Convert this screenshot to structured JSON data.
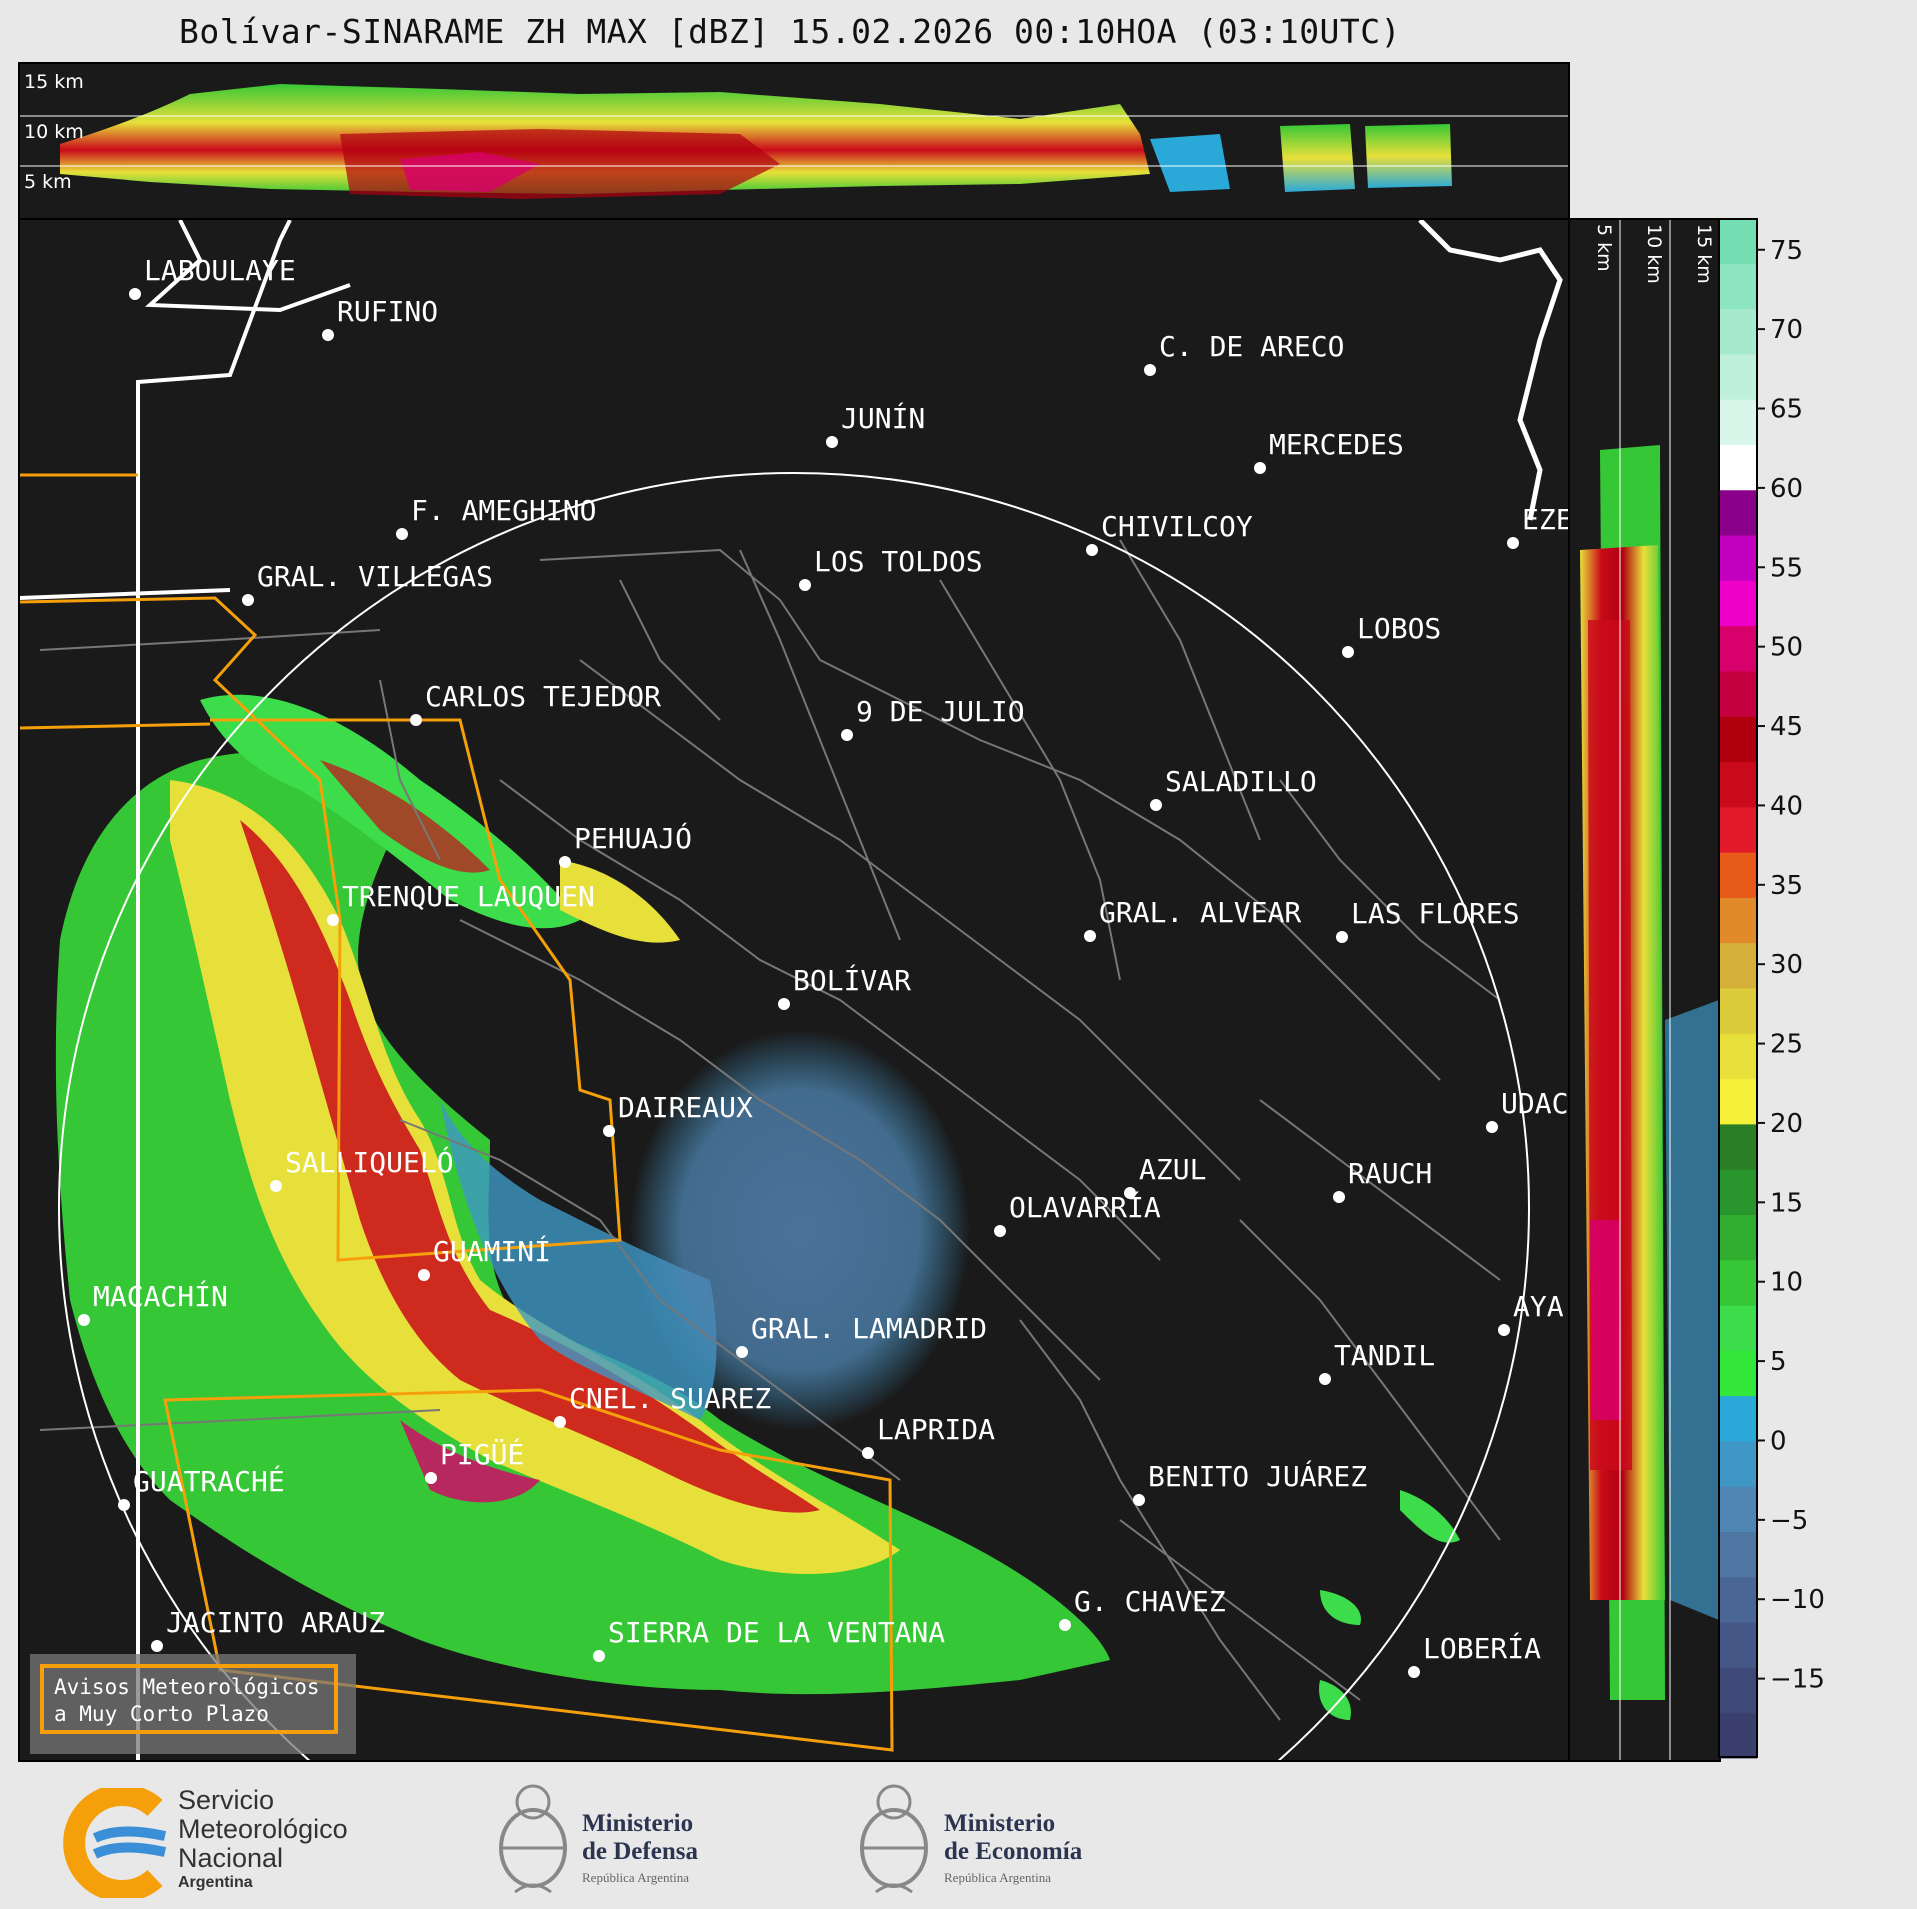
{
  "title": "Bolívar-SINARAME ZH MAX [dBZ] 15.02.2026 00:10HOA (03:10UTC)",
  "top_panel": {
    "height_labels": [
      "15 km",
      "10 km",
      "5 km"
    ]
  },
  "side_panel": {
    "height_labels": [
      "5 km",
      "10 km",
      "15 km"
    ]
  },
  "cities": [
    "LABOULAYE",
    "RUFINO",
    "C. DE ARECO",
    "JUNÍN",
    "MERCEDES",
    "F. AMEGHINO",
    "CHIVILCOY",
    "EZE",
    "LOS TOLDOS",
    "GRAL. VILLEGAS",
    "LOBOS",
    "CARLOS TEJEDOR",
    "9 DE JULIO",
    "SALADILLO",
    "PEHUAJÓ",
    "TRENQUE LAUQUEN",
    "GRAL. ALVEAR",
    "LAS FLORES",
    "BOLÍVAR",
    "DAIREAUX",
    "UDAC",
    "AZUL",
    "RAUCH",
    "SALLIQUELÓ",
    "OLAVARRÍA",
    "GUAMINÍ",
    "MACACHÍN",
    "AYA",
    "GRAL. LAMADRID",
    "TANDIL",
    "CNEL. SUAREZ",
    "LAPRIDA",
    "PIGÜÉ",
    "BENITO JUÁREZ",
    "GUATRACHÉ",
    "G. CHAVEZ",
    "JACINTO ARAUZ",
    "SIERRA DE LA VENTANA",
    "LOBERÍA"
  ],
  "colorbar": {
    "ticks": [
      "75",
      "70",
      "65",
      "60",
      "55",
      "50",
      "45",
      "40",
      "35",
      "30",
      "25",
      "20",
      "15",
      "10",
      "5",
      "0",
      "−5",
      "−10",
      "−15"
    ],
    "colors": [
      "#3a3f6e",
      "#3f4a7a",
      "#455786",
      "#4a6694",
      "#4f76a2",
      "#4f86b3",
      "#3f97c6",
      "#2aa9d8",
      "#33e63a",
      "#3ddc4a",
      "#36c736",
      "#2fae2f",
      "#28962c",
      "#2a7e26",
      "#f5f03a",
      "#e8e03a",
      "#dccb3a",
      "#d4b03a",
      "#e08a2a",
      "#e85a1a",
      "#e21a2a",
      "#c90a1a",
      "#b00010",
      "#c40040",
      "#d8006a",
      "#ee00c8",
      "#c400c0",
      "#8a008a",
      "#ffffff",
      "#d8f6ea",
      "#bff0dc",
      "#a6eace",
      "#8de4c0",
      "#74deb2"
    ]
  },
  "warning_box": {
    "line1": "Avisos Meteorológicos",
    "line2": "a Muy Corto Plazo"
  },
  "footer": {
    "smn": [
      "Servicio",
      "Meteorológico",
      "Nacional",
      "Argentina"
    ],
    "defensa": [
      "Ministerio",
      "de Defensa",
      "República Argentina"
    ],
    "economia": [
      "Ministerio",
      "de Economía",
      "República Argentina"
    ]
  }
}
